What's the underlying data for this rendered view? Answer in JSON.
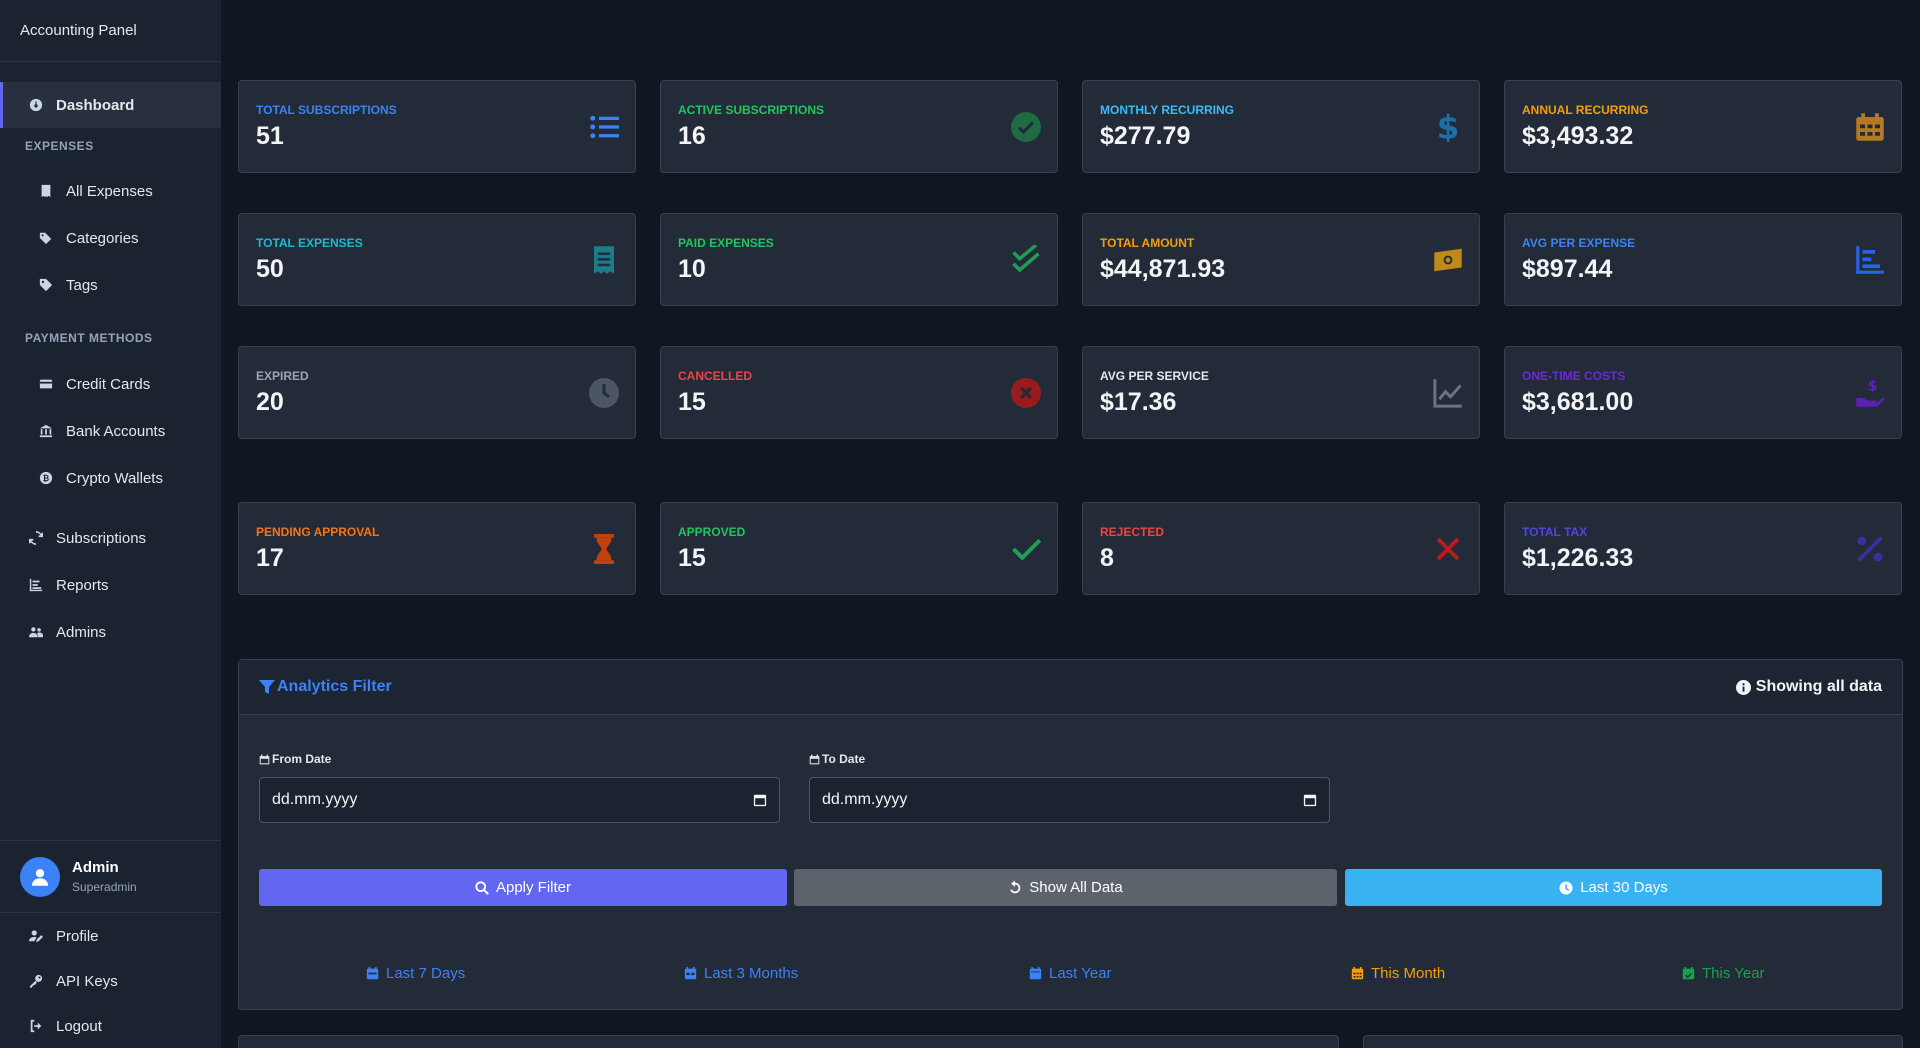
{
  "app": {
    "title": "Accounting Panel"
  },
  "sidebar": {
    "dashboard": "Dashboard",
    "expenses_heading": "EXPENSES",
    "all_expenses": "All Expenses",
    "categories": "Categories",
    "tags": "Tags",
    "payment_heading": "PAYMENT METHODS",
    "credit_cards": "Credit Cards",
    "bank_accounts": "Bank Accounts",
    "crypto_wallets": "Crypto Wallets",
    "subscriptions": "Subscriptions",
    "reports": "Reports",
    "admins": "Admins"
  },
  "user": {
    "name": "Admin",
    "role": "Superadmin"
  },
  "account_menu": {
    "profile": "Profile",
    "api_keys": "API Keys",
    "logout": "Logout"
  },
  "stats": [
    {
      "label": "Total Subscriptions",
      "value": "51",
      "color": "#3b82f6",
      "icon": "list-icon"
    },
    {
      "label": "Active Subscriptions",
      "value": "16",
      "color": "#22c55e",
      "icon": "check-circle-icon"
    },
    {
      "label": "Monthly Recurring",
      "value": "$277.79",
      "color": "#38bdf8",
      "icon": "dollar-icon"
    },
    {
      "label": "Annual Recurring",
      "value": "$3,493.32",
      "color": "#f59e0b",
      "icon": "calendar-icon"
    },
    {
      "label": "Total Expenses",
      "value": "50",
      "color": "#22b8cf",
      "icon": "receipt-icon"
    },
    {
      "label": "Paid Expenses",
      "value": "10",
      "color": "#22c55e",
      "icon": "double-check-icon"
    },
    {
      "label": "Total Amount",
      "value": "$44,871.93",
      "color": "#f59e0b",
      "icon": "money-bill-icon"
    },
    {
      "label": "Avg Per Expense",
      "value": "$897.44",
      "color": "#3b82f6",
      "icon": "bar-chart-icon"
    },
    {
      "label": "Expired",
      "value": "20",
      "color": "#9ca3af",
      "icon": "clock-icon"
    },
    {
      "label": "Cancelled",
      "value": "15",
      "color": "#ef4444",
      "icon": "x-circle-icon"
    },
    {
      "label": "Avg Per Service",
      "value": "$17.36",
      "color": "#e5e7eb",
      "icon": "line-chart-icon"
    },
    {
      "label": "One-Time Costs",
      "value": "$3,681.00",
      "color": "#6d28d9",
      "icon": "hand-dollar-icon"
    },
    {
      "label": "Pending Approval",
      "value": "17",
      "color": "#f97316",
      "icon": "hourglass-icon"
    },
    {
      "label": "Approved",
      "value": "15",
      "color": "#22c55e",
      "icon": "check-icon"
    },
    {
      "label": "Rejected",
      "value": "8",
      "color": "#ef4444",
      "icon": "x-icon"
    },
    {
      "label": "Total Tax",
      "value": "$1,226.33",
      "color": "#4f46e5",
      "icon": "percent-icon"
    }
  ],
  "filter": {
    "title": "Analytics Filter",
    "status": "Showing all data",
    "from_label": "From Date",
    "to_label": "To Date",
    "from_value": "dd.mm.yyyy",
    "to_value": "dd.mm.yyyy",
    "apply": "Apply Filter",
    "show_all": "Show All Data",
    "last_30": "Last 30 Days",
    "quick": [
      {
        "label": "Last 7 Days",
        "color": "#3b82f6"
      },
      {
        "label": "Last 3 Months",
        "color": "#3b82f6"
      },
      {
        "label": "Last Year",
        "color": "#3b82f6"
      },
      {
        "label": "This Month",
        "color": "#f59e0b"
      },
      {
        "label": "This Year",
        "color": "#16a34a"
      }
    ]
  },
  "colors": {
    "apply": "#6366f1",
    "show_all": "#5c636a",
    "last_30": "#38b2f0",
    "accent": "#6366f1"
  }
}
